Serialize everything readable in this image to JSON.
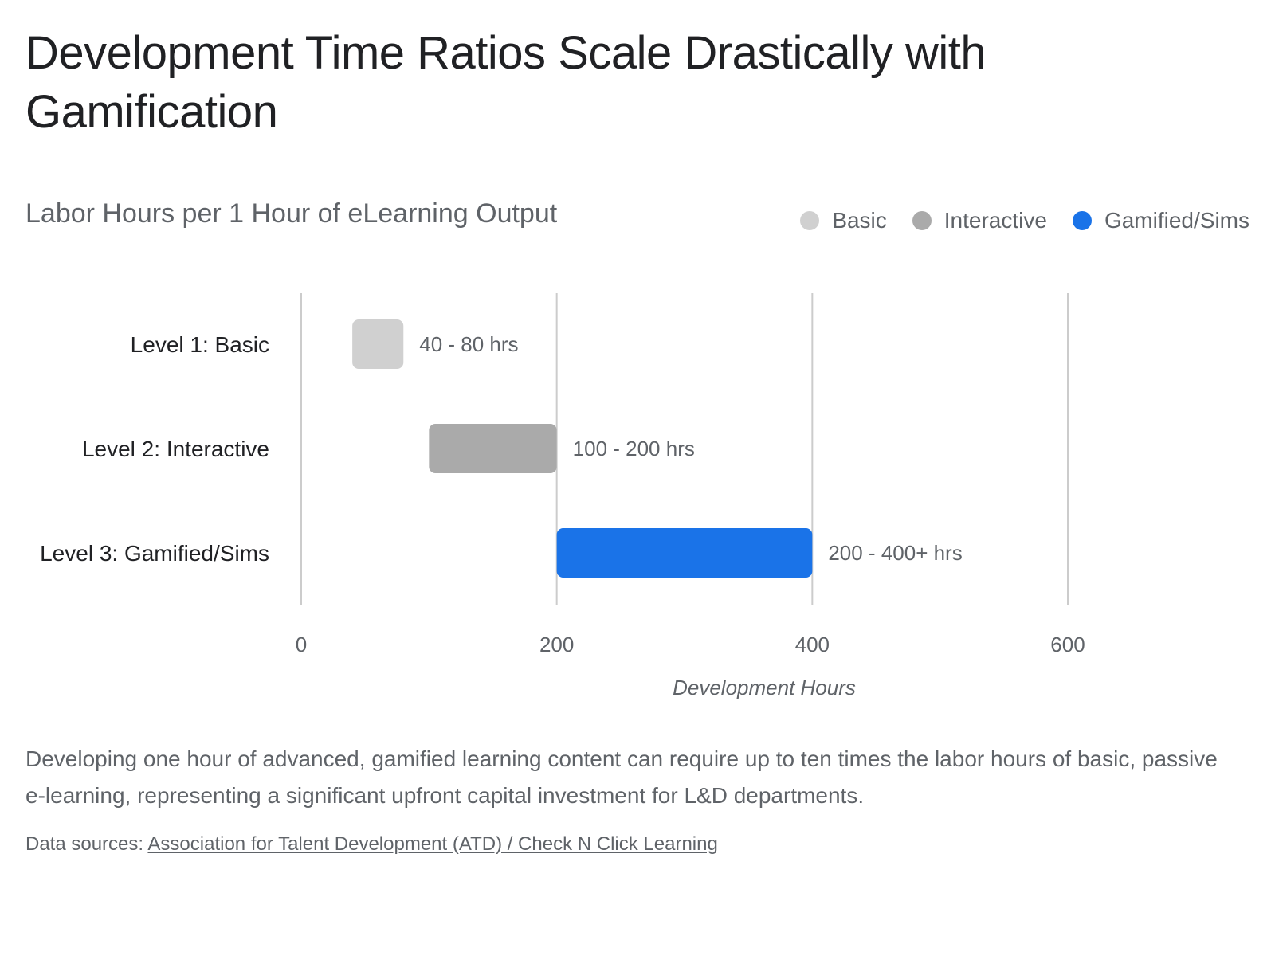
{
  "header": {
    "title": "Development Time Ratios Scale Drastically with Gamification",
    "subtitle": "Labor Hours per 1 Hour of eLearning Output"
  },
  "legend": [
    {
      "label": "Basic",
      "color": "#d0d0d0"
    },
    {
      "label": "Interactive",
      "color": "#aaaaaa"
    },
    {
      "label": "Gamified/Sims",
      "color": "#1a73e8"
    }
  ],
  "chart_data": {
    "type": "bar",
    "orientation": "horizontal",
    "categories": [
      "Level 1: Basic",
      "Level 2: Interactive",
      "Level 3: Gamified/Sims"
    ],
    "ranges": [
      {
        "start": 40,
        "end": 80,
        "label": "40 - 80 hrs",
        "color": "#d0d0d0"
      },
      {
        "start": 100,
        "end": 200,
        "label": "100 - 200 hrs",
        "color": "#aaaaaa"
      },
      {
        "start": 200,
        "end": 400,
        "label": "200 - 400+ hrs",
        "color": "#1a73e8"
      }
    ],
    "xlabel": "Development Hours",
    "xlim": [
      0,
      600
    ],
    "xticks": [
      0,
      200,
      400,
      600
    ],
    "grid": true,
    "legend_position": "top-right"
  },
  "footer": {
    "description": "Developing one hour of advanced, gamified learning content can require up to ten times the labor hours of basic, passive e-learning, representing a significant upfront capital investment for L&D departments.",
    "sources_prefix": "Data sources: ",
    "sources_link": "Association for Talent Development (ATD) / Check N Click Learning"
  }
}
